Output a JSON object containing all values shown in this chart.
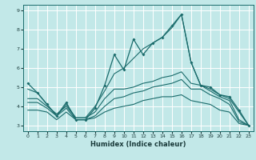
{
  "background_color": "#c2e8e8",
  "grid_color": "#ffffff",
  "line_color": "#1a6b6b",
  "xlabel": "Humidex (Indice chaleur)",
  "ylim": [
    2.7,
    9.3
  ],
  "xlim": [
    -0.5,
    23.5
  ],
  "yticks": [
    3,
    4,
    5,
    6,
    7,
    8,
    9
  ],
  "xticks": [
    0,
    1,
    2,
    3,
    4,
    5,
    6,
    7,
    8,
    9,
    10,
    11,
    12,
    13,
    14,
    15,
    16,
    17,
    18,
    19,
    20,
    21,
    22,
    23
  ],
  "series1_x": [
    0,
    1,
    2,
    3,
    4,
    5,
    6,
    7,
    8,
    9,
    10,
    11,
    12,
    13,
    14,
    15,
    16,
    17,
    18,
    19,
    20,
    21,
    22,
    23
  ],
  "series1_y": [
    5.2,
    4.7,
    4.1,
    3.5,
    4.2,
    3.3,
    3.3,
    3.9,
    5.1,
    6.7,
    5.9,
    7.5,
    6.7,
    7.3,
    7.6,
    8.2,
    8.8,
    6.3,
    5.1,
    5.0,
    4.6,
    4.5,
    3.8,
    3.0
  ],
  "series2_x": [
    0,
    1,
    2,
    3,
    4,
    5,
    6,
    7,
    8,
    9,
    10,
    11,
    12,
    13,
    14,
    15,
    16,
    17,
    18,
    19,
    20,
    21,
    22,
    23
  ],
  "series2_y": [
    4.9,
    4.7,
    4.1,
    3.5,
    4.1,
    3.4,
    3.4,
    4.0,
    4.8,
    5.7,
    6.0,
    6.5,
    7.0,
    7.3,
    7.6,
    8.1,
    8.8,
    6.3,
    5.1,
    4.9,
    4.6,
    4.4,
    3.7,
    3.0
  ],
  "series3_x": [
    0,
    1,
    2,
    3,
    4,
    5,
    6,
    7,
    8,
    9,
    10,
    11,
    12,
    13,
    14,
    15,
    16,
    17,
    18,
    19,
    20,
    21,
    22,
    23
  ],
  "series3_y": [
    4.4,
    4.4,
    4.0,
    3.6,
    4.0,
    3.4,
    3.4,
    3.7,
    4.4,
    4.9,
    4.9,
    5.0,
    5.2,
    5.3,
    5.5,
    5.6,
    5.8,
    5.2,
    5.1,
    4.8,
    4.5,
    4.3,
    3.3,
    3.0
  ],
  "series4_x": [
    0,
    1,
    2,
    3,
    4,
    5,
    6,
    7,
    8,
    9,
    10,
    11,
    12,
    13,
    14,
    15,
    16,
    17,
    18,
    19,
    20,
    21,
    22,
    23
  ],
  "series4_y": [
    4.2,
    4.2,
    3.9,
    3.5,
    3.9,
    3.3,
    3.3,
    3.5,
    4.0,
    4.4,
    4.5,
    4.7,
    4.8,
    5.0,
    5.1,
    5.2,
    5.4,
    4.9,
    4.9,
    4.6,
    4.4,
    4.1,
    3.2,
    3.0
  ],
  "series5_x": [
    0,
    1,
    2,
    3,
    4,
    5,
    6,
    7,
    8,
    9,
    10,
    11,
    12,
    13,
    14,
    15,
    16,
    17,
    18,
    19,
    20,
    21,
    22,
    23
  ],
  "series5_y": [
    3.8,
    3.8,
    3.7,
    3.3,
    3.7,
    3.3,
    3.3,
    3.4,
    3.7,
    3.9,
    4.0,
    4.1,
    4.3,
    4.4,
    4.5,
    4.5,
    4.6,
    4.3,
    4.2,
    4.1,
    3.8,
    3.7,
    3.1,
    3.0
  ]
}
